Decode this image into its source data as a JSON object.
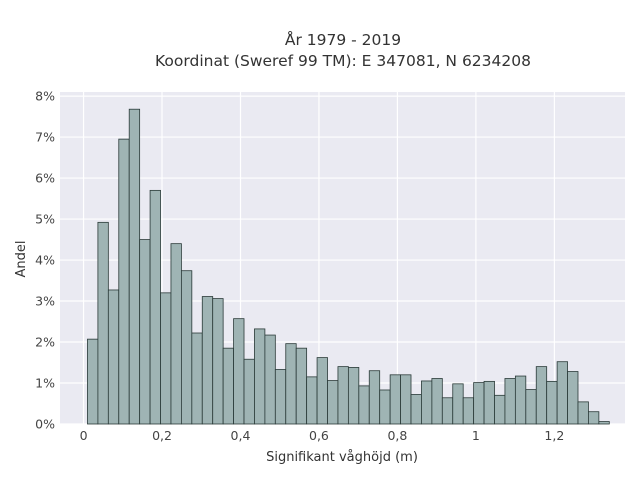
{
  "chart_data": {
    "type": "bar",
    "title_lines": [
      "År 1979 - 2019",
      "Koordinat (Sweref 99 TM): E 347081, N 6234208"
    ],
    "xlabel": "Signifikant våghöjd (m)",
    "ylabel": "Andel",
    "xlim": [
      -0.06,
      1.38
    ],
    "ylim": [
      0,
      0.081
    ],
    "x_ticks": [
      {
        "value": 0,
        "label": "0"
      },
      {
        "value": 0.2,
        "label": "0,2"
      },
      {
        "value": 0.4,
        "label": "0,4"
      },
      {
        "value": 0.6,
        "label": "0,6"
      },
      {
        "value": 0.8,
        "label": "0,8"
      },
      {
        "value": 1.0,
        "label": "1"
      },
      {
        "value": 1.2,
        "label": "1,2"
      }
    ],
    "y_ticks": [
      {
        "value": 0,
        "label": "0%"
      },
      {
        "value": 0.01,
        "label": "1%"
      },
      {
        "value": 0.02,
        "label": "2%"
      },
      {
        "value": 0.03,
        "label": "3%"
      },
      {
        "value": 0.04,
        "label": "4%"
      },
      {
        "value": 0.05,
        "label": "5%"
      },
      {
        "value": 0.06,
        "label": "6%"
      },
      {
        "value": 0.07,
        "label": "7%"
      },
      {
        "value": 0.08,
        "label": "8%"
      }
    ],
    "bin_start": 0.01,
    "bin_width": 0.0266,
    "values": [
      0.0207,
      0.0492,
      0.0327,
      0.0695,
      0.0768,
      0.045,
      0.057,
      0.032,
      0.044,
      0.0374,
      0.0222,
      0.0311,
      0.0306,
      0.0185,
      0.0257,
      0.0158,
      0.0232,
      0.0217,
      0.0133,
      0.0196,
      0.0185,
      0.0115,
      0.0162,
      0.0106,
      0.014,
      0.0138,
      0.0093,
      0.013,
      0.0083,
      0.012,
      0.012,
      0.0072,
      0.0105,
      0.0111,
      0.0064,
      0.0098,
      0.0064,
      0.0101,
      0.0104,
      0.007,
      0.0111,
      0.0117,
      0.0084,
      0.014,
      0.0104,
      0.0152,
      0.0128,
      0.0054,
      0.003,
      0.0006
    ],
    "grid": true,
    "colors": {
      "background": "#eaeaf2",
      "bar_fill": "#9fb4b4",
      "bar_edge": "#2a3a38",
      "grid": "#ffffff"
    }
  }
}
